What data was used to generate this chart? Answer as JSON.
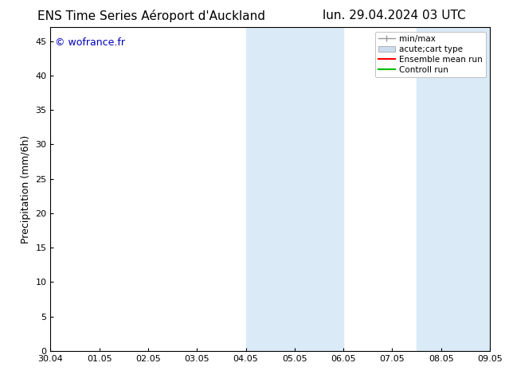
{
  "title_left": "ENS Time Series Aéroport d'Auckland",
  "title_right": "lun. 29.04.2024 03 UTC",
  "ylabel": "Precipitation (mm/6h)",
  "watermark": "© wofrance.fr",
  "watermark_color": "#0000bb",
  "ylim": [
    0,
    47
  ],
  "yticks": [
    0,
    5,
    10,
    15,
    20,
    25,
    30,
    35,
    40,
    45
  ],
  "xtick_labels": [
    "30.04",
    "01.05",
    "02.05",
    "03.05",
    "04.05",
    "05.05",
    "06.05",
    "07.05",
    "08.05",
    "09.05"
  ],
  "xtick_positions": [
    0,
    1,
    2,
    3,
    4,
    5,
    6,
    7,
    8,
    9
  ],
  "shaded_regions": [
    {
      "x_start": 4.0,
      "x_end": 6.0,
      "color": "#daeaf7"
    },
    {
      "x_start": 7.5,
      "x_end": 9.0,
      "color": "#daeaf7"
    }
  ],
  "legend_items": [
    {
      "label": "min/max",
      "color": "#999999",
      "type": "errbar"
    },
    {
      "label": "acute;cart type",
      "color": "#ccddee",
      "type": "fillbar"
    },
    {
      "label": "Ensemble mean run",
      "color": "#ff0000",
      "type": "line"
    },
    {
      "label": "Controll run",
      "color": "#00bb00",
      "type": "line"
    }
  ],
  "bg_color": "#ffffff",
  "plot_bg_color": "#ffffff",
  "tick_fontsize": 8,
  "label_fontsize": 9,
  "title_fontsize": 11,
  "legend_fontsize": 7.5
}
